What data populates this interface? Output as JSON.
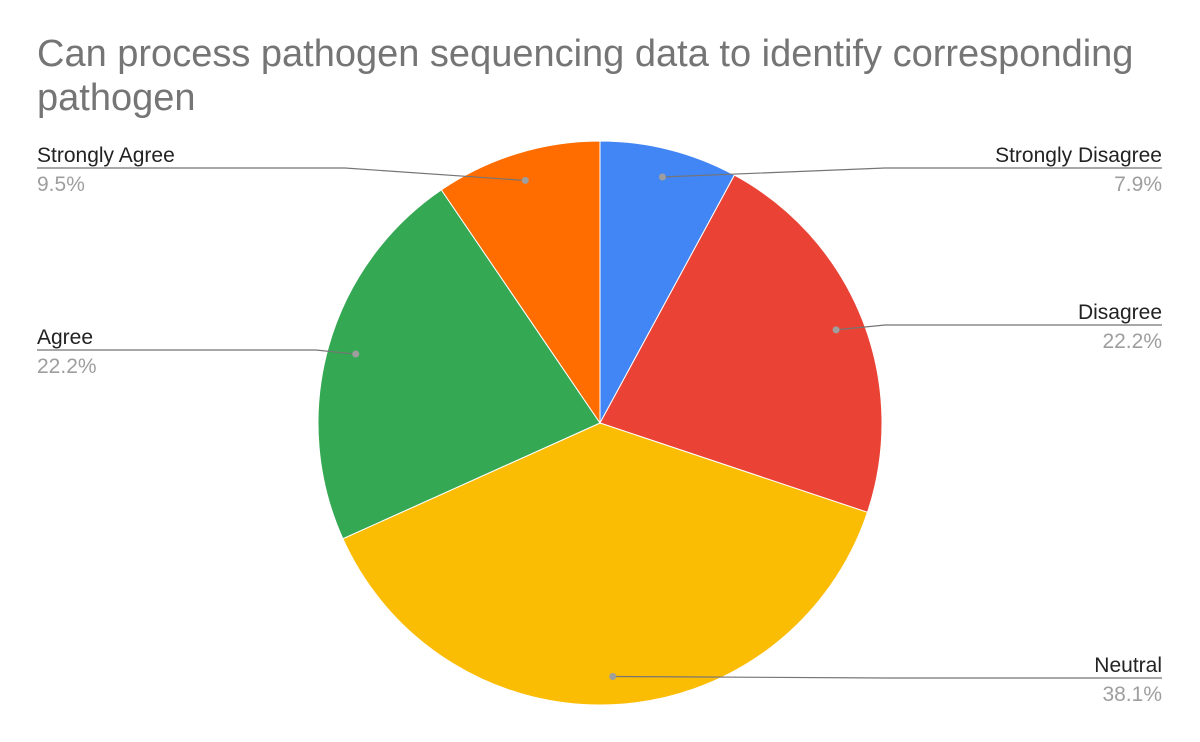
{
  "chart_data": {
    "type": "pie",
    "title": "Can process pathogen sequencing data to identify corresponding pathogen",
    "slices": [
      {
        "label": "Strongly Disagree",
        "value": 7.9,
        "display": "7.9%",
        "color": "#4285f4"
      },
      {
        "label": "Disagree",
        "value": 22.2,
        "display": "22.2%",
        "color": "#ea4335"
      },
      {
        "label": "Neutral",
        "value": 38.1,
        "display": "38.1%",
        "color": "#fbbc04"
      },
      {
        "label": "Agree",
        "value": 22.2,
        "display": "22.2%",
        "color": "#34a853"
      },
      {
        "label": "Strongly Agree",
        "value": 9.5,
        "display": "9.5%",
        "color": "#ff6d01"
      }
    ],
    "start_angle_deg": 0,
    "direction": "clockwise",
    "legend": "labels with leader lines"
  }
}
